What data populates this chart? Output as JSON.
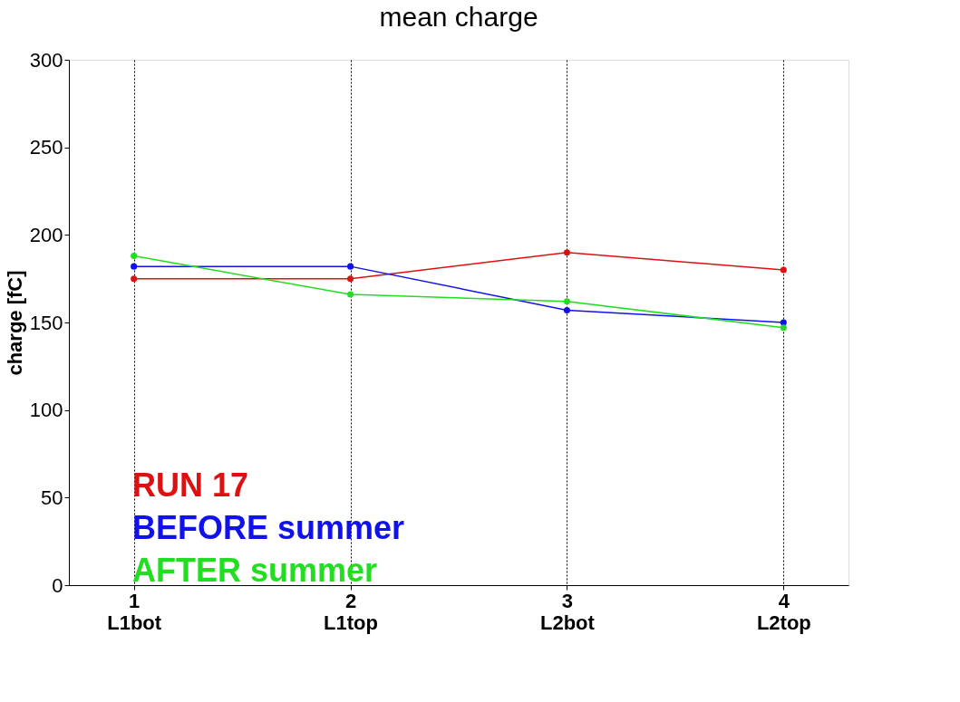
{
  "chart_data": {
    "type": "line",
    "title": "mean charge",
    "ylabel": "charge [fC]",
    "categories": [
      "1\nL1bot",
      "2\nL1top",
      "3\nL2bot",
      "4\nL2top"
    ],
    "ylim": [
      0,
      300
    ],
    "yticks": [
      0,
      50,
      100,
      150,
      200,
      250,
      300
    ],
    "grid": "x",
    "marker": "circle",
    "line_style": "solid",
    "legend": "bottom left",
    "series": [
      {
        "name": "RUN 17",
        "color": "#dd1111",
        "values": [
          175,
          175,
          190,
          180
        ]
      },
      {
        "name": "BEFORE summer",
        "color": "#1111ee",
        "values": [
          182,
          182,
          157,
          150
        ]
      },
      {
        "name": "AFTER summer",
        "color": "#22dd22",
        "values": [
          188,
          166,
          162,
          147
        ]
      }
    ]
  }
}
